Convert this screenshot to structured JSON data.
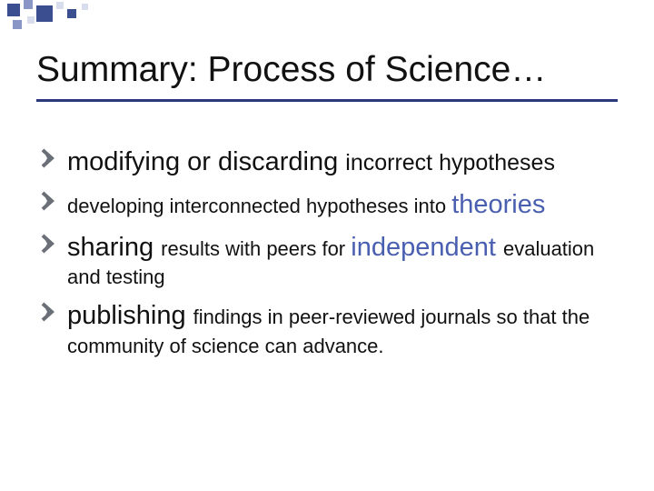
{
  "colors": {
    "accent_dark": "#2b3a7a",
    "accent_mid": "#8a96c5",
    "accent_light": "#d8ddee",
    "chevron": "#6b6f77",
    "text": "#111111",
    "link_blue": "#4a5fb0",
    "background": "#ffffff"
  },
  "title": "Summary: Process of Science…",
  "bullets": [
    {
      "segments": [
        {
          "text": "modifying or discarding ",
          "size": "big",
          "blue": false
        },
        {
          "text": "incorrect hypotheses",
          "size": "mid",
          "blue": false
        }
      ]
    },
    {
      "segments": [
        {
          "text": "developing interconnected hypotheses into ",
          "size": "small",
          "blue": false
        },
        {
          "text": "theories",
          "size": "big",
          "blue": true
        }
      ]
    },
    {
      "segments": [
        {
          "text": "sharing ",
          "size": "big",
          "blue": false
        },
        {
          "text": "results with peers for ",
          "size": "small",
          "blue": false
        },
        {
          "text": "independent ",
          "size": "big",
          "blue": true
        },
        {
          "text": "evaluation and testing",
          "size": "small",
          "blue": false
        }
      ]
    },
    {
      "segments": [
        {
          "text": "publishing ",
          "size": "big",
          "blue": false
        },
        {
          "text": "findings in peer-reviewed journals so that the community of science can advance.",
          "size": "small",
          "blue": false
        }
      ]
    }
  ]
}
